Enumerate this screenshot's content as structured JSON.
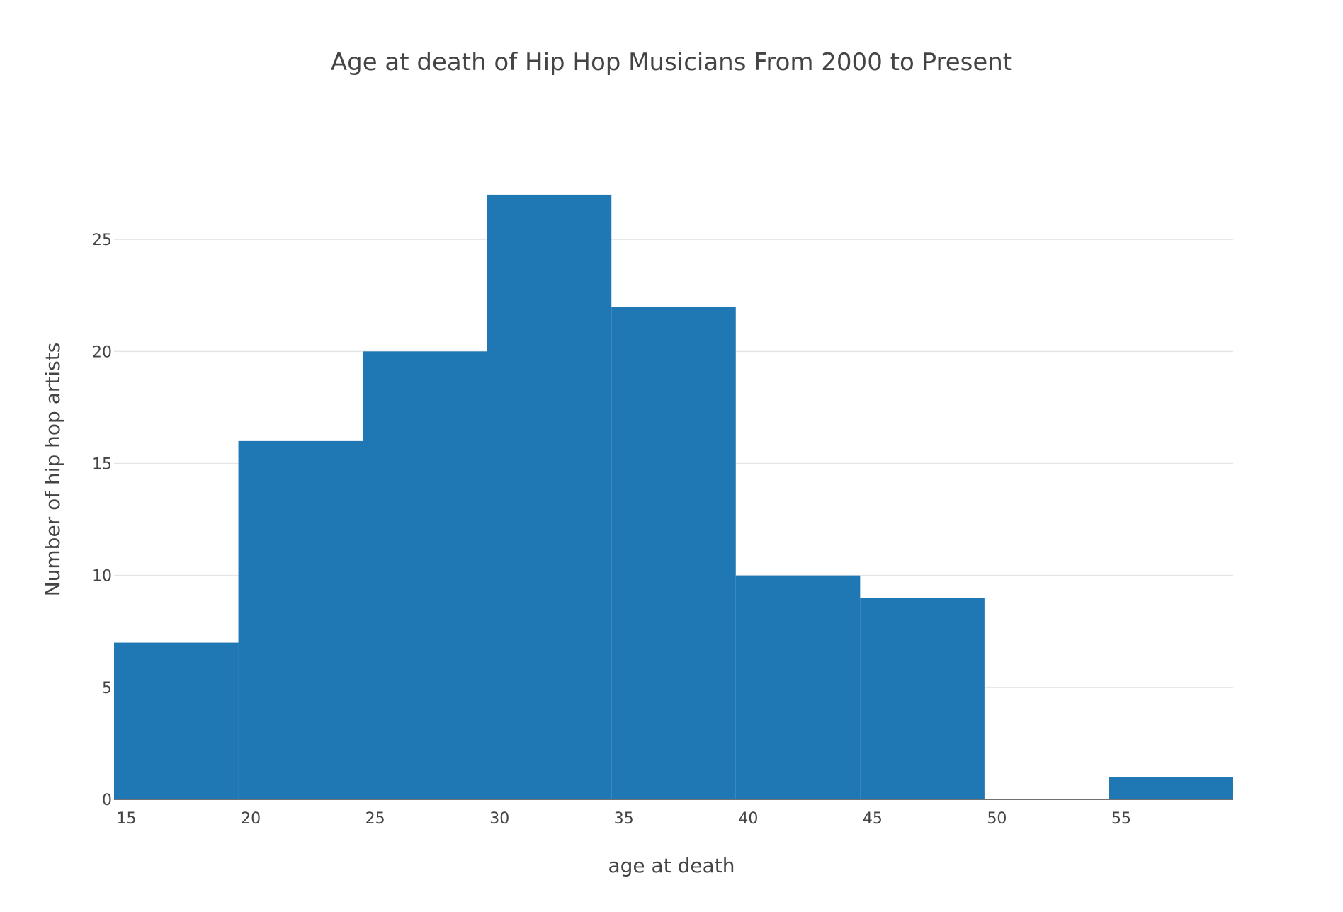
{
  "chart_data": {
    "type": "bar",
    "title": "Age at death of Hip Hop Musicians From 2000 to Present",
    "xlabel": "age at death",
    "ylabel": "Number of hip hop artists",
    "bin_width": 5,
    "bins": [
      {
        "start": 14.5,
        "end": 19.5,
        "value": 7
      },
      {
        "start": 19.5,
        "end": 24.5,
        "value": 16
      },
      {
        "start": 24.5,
        "end": 29.5,
        "value": 20
      },
      {
        "start": 29.5,
        "end": 34.5,
        "value": 27
      },
      {
        "start": 34.5,
        "end": 39.5,
        "value": 22
      },
      {
        "start": 39.5,
        "end": 44.5,
        "value": 10
      },
      {
        "start": 44.5,
        "end": 49.5,
        "value": 9
      },
      {
        "start": 49.5,
        "end": 54.5,
        "value": 0
      },
      {
        "start": 54.5,
        "end": 59.5,
        "value": 1
      }
    ],
    "xlim": [
      14.5,
      59.5
    ],
    "ylim": [
      0,
      28.42
    ],
    "x_ticks": [
      "15",
      "20",
      "25",
      "30",
      "35",
      "40",
      "45",
      "50",
      "55"
    ],
    "y_ticks": [
      "0",
      "5",
      "10",
      "15",
      "20",
      "25"
    ],
    "bar_color": "#1f77b4",
    "grid": true,
    "legend": "none"
  }
}
